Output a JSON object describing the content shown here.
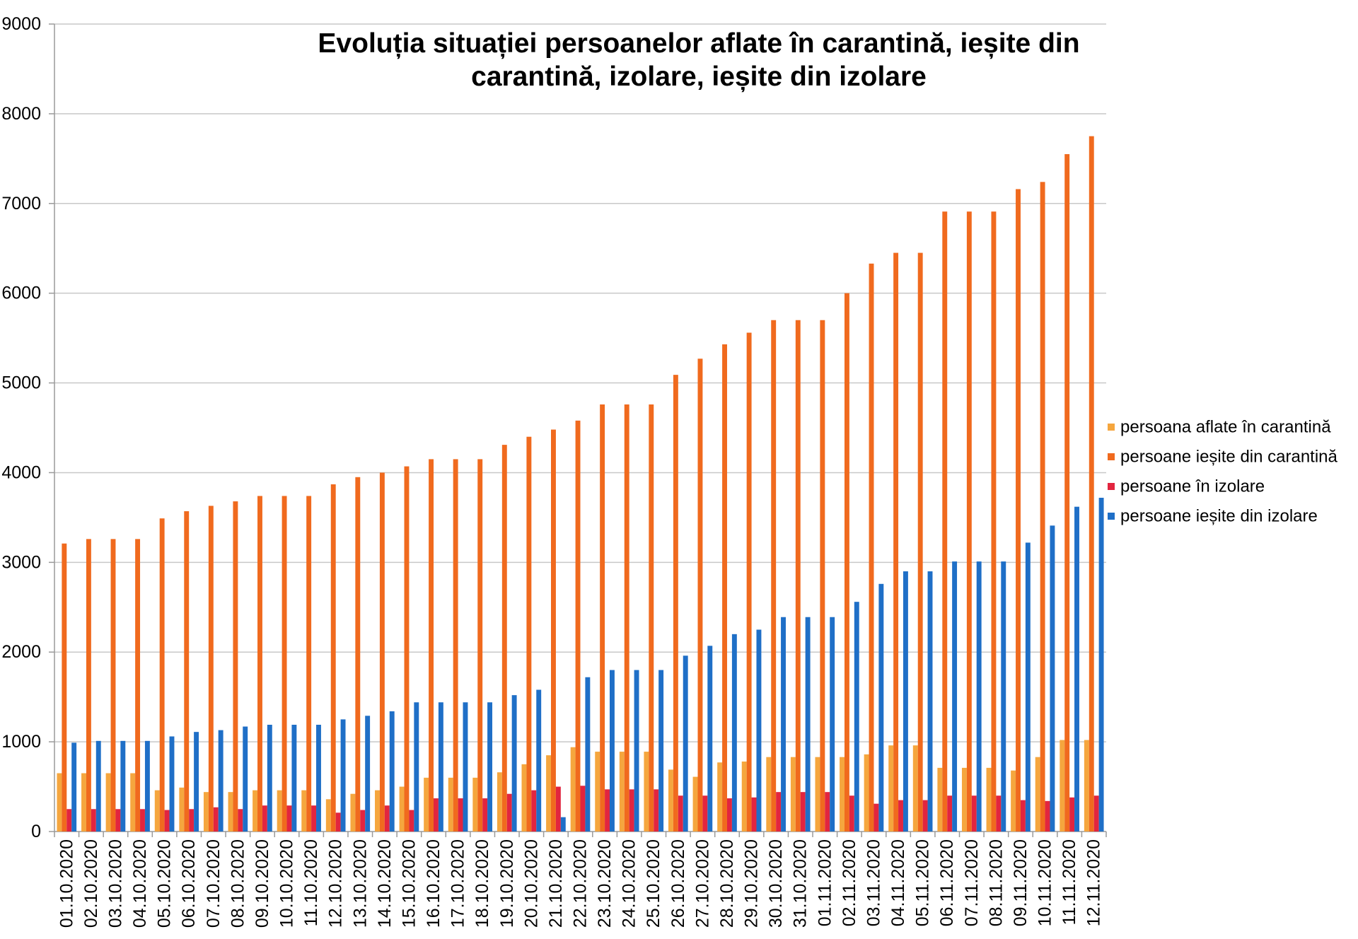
{
  "chart_data": {
    "type": "bar",
    "title": "Evoluția situației persoanelor aflate în carantină, ieșite din carantină, izolare, ieșite din izolare",
    "ylim": [
      0,
      9000
    ],
    "y_ticks": [
      0,
      1000,
      2000,
      3000,
      4000,
      5000,
      6000,
      7000,
      8000,
      9000
    ],
    "grid": true,
    "legend": "right",
    "categories": [
      "01.10.2020",
      "02.10.2020",
      "03.10.2020",
      "04.10.2020",
      "05.10.2020",
      "06.10.2020",
      "07.10.2020",
      "08.10.2020",
      "09.10.2020",
      "10.10.2020",
      "11.10.2020",
      "12.10.2020",
      "13.10.2020",
      "14.10.2020",
      "15.10.2020",
      "16.10.2020",
      "17.10.2020",
      "18.10.2020",
      "19.10.2020",
      "20.10.2020",
      "21.10.2020",
      "22.10.2020",
      "23.10.2020",
      "24.10.2020",
      "25.10.2020",
      "26.10.2020",
      "27.10.2020",
      "28.10.2020",
      "29.10.2020",
      "30.10.2020",
      "31.10.2020",
      "01.11.2020",
      "02.11.2020",
      "03.11.2020",
      "04.11.2020",
      "05.11.2020",
      "06.11.2020",
      "07.11.2020",
      "08.11.2020",
      "09.11.2020",
      "10.11.2020",
      "11.11.2020",
      "12.11.2020"
    ],
    "series": [
      {
        "name": "persoana aflate în carantină",
        "color": "#F5A63E",
        "values": [
          650,
          650,
          650,
          650,
          460,
          490,
          440,
          440,
          460,
          460,
          460,
          360,
          420,
          460,
          500,
          600,
          600,
          600,
          660,
          750,
          850,
          940,
          890,
          890,
          890,
          690,
          610,
          770,
          780,
          830,
          830,
          830,
          830,
          860,
          960,
          960,
          710,
          710,
          710,
          680,
          830,
          1020,
          1020
        ]
      },
      {
        "name": "persoane ieșite din carantină",
        "color": "#F06A1E",
        "values": [
          3210,
          3260,
          3260,
          3260,
          3490,
          3570,
          3630,
          3680,
          3740,
          3740,
          3740,
          3870,
          3950,
          4000,
          4070,
          4150,
          4150,
          4150,
          4310,
          4400,
          4480,
          4580,
          4760,
          4760,
          4760,
          5090,
          5270,
          5430,
          5560,
          5700,
          5700,
          5700,
          6000,
          6330,
          6450,
          6450,
          6910,
          6910,
          6910,
          7160,
          7240,
          7550,
          7750
        ]
      },
      {
        "name": "persoane în izolare",
        "color": "#E2253F",
        "values": [
          250,
          250,
          250,
          250,
          240,
          250,
          270,
          250,
          290,
          290,
          290,
          210,
          240,
          290,
          240,
          370,
          370,
          370,
          420,
          460,
          500,
          510,
          470,
          470,
          470,
          400,
          400,
          370,
          380,
          440,
          440,
          440,
          400,
          310,
          350,
          350,
          400,
          400,
          400,
          350,
          340,
          380,
          400
        ]
      },
      {
        "name": "persoane ieșite din izolare",
        "color": "#1F6FC7",
        "values": [
          990,
          1010,
          1010,
          1010,
          1060,
          1110,
          1130,
          1170,
          1190,
          1190,
          1190,
          1250,
          1290,
          1340,
          1440,
          1440,
          1440,
          1440,
          1520,
          1580,
          160,
          1720,
          1800,
          1800,
          1800,
          1960,
          2070,
          2200,
          2250,
          2390,
          2390,
          2390,
          2560,
          2760,
          2900,
          2900,
          3010,
          3010,
          3010,
          3220,
          3410,
          3620,
          3720
        ]
      }
    ]
  }
}
